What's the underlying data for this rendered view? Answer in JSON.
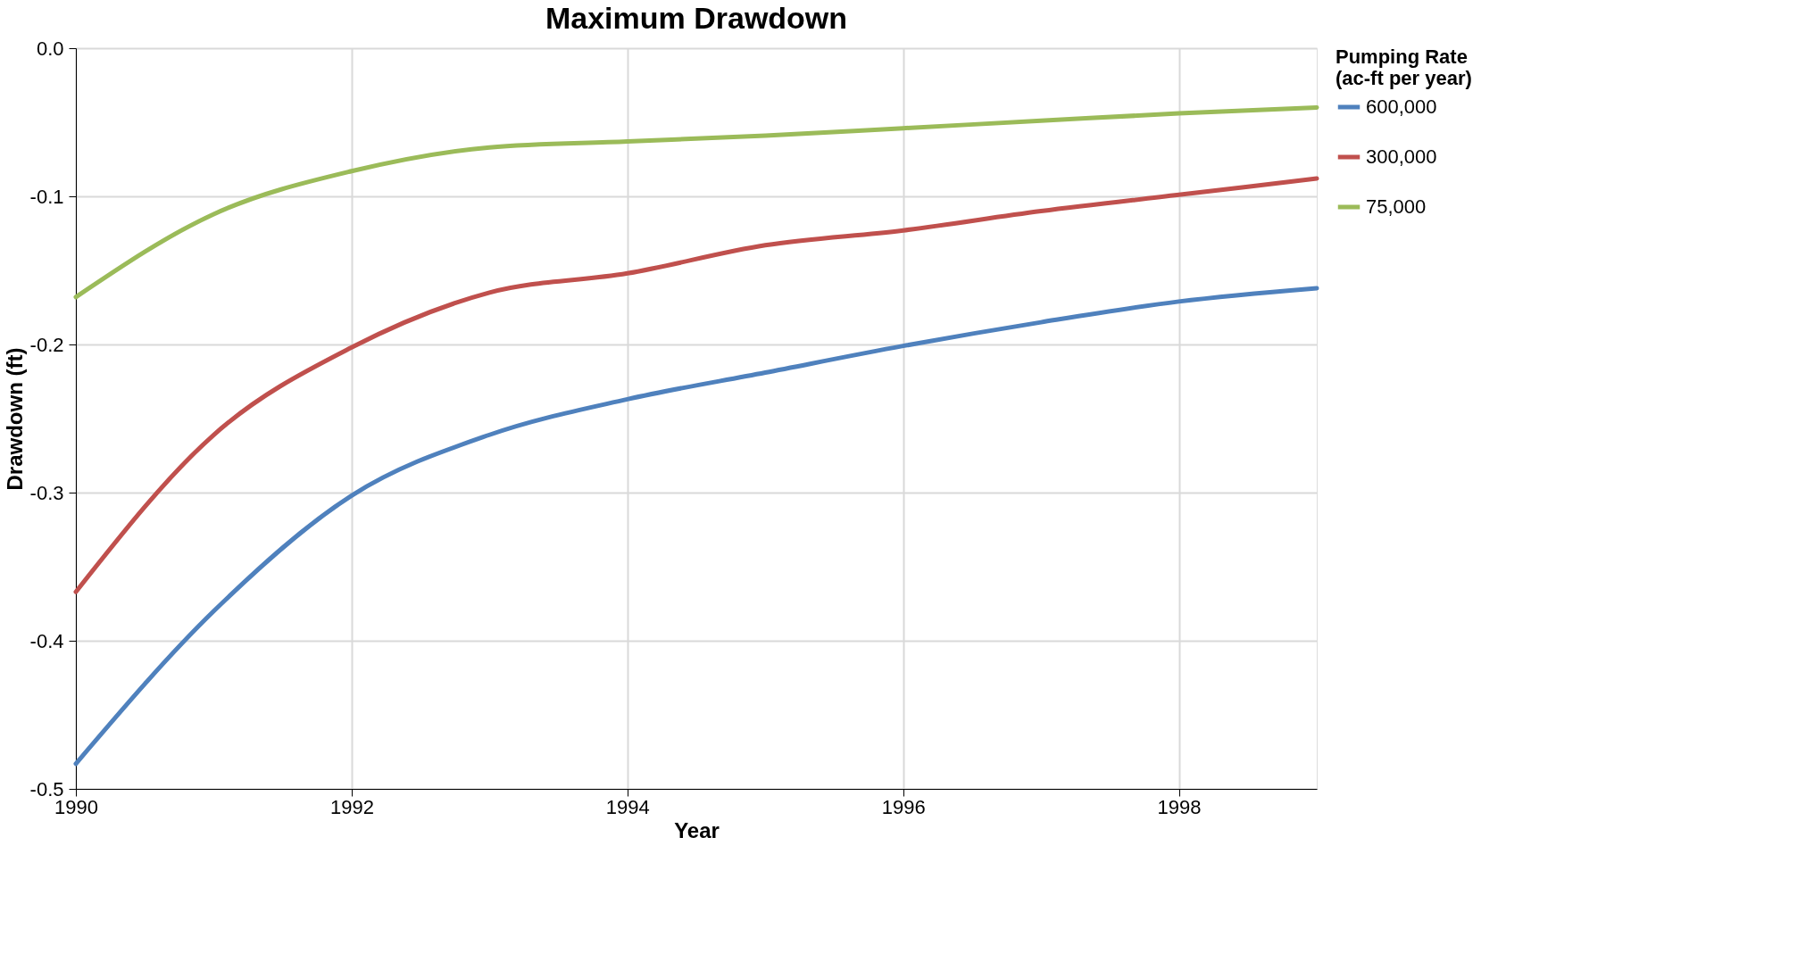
{
  "chart_data": {
    "type": "line",
    "title": "Maximum Drawdown",
    "xlabel": "Year",
    "ylabel": "Drawdown (ft)",
    "legend_title": "Pumping Rate\n(ac-ft per year)",
    "x": [
      1990,
      1991,
      1992,
      1993,
      1994,
      1995,
      1996,
      1997,
      1998,
      1999
    ],
    "series": [
      {
        "name": "600,000",
        "color": "#4f81bd",
        "values": [
          -0.483,
          -0.38,
          -0.302,
          -0.261,
          -0.237,
          -0.219,
          -0.201,
          -0.185,
          -0.171,
          -0.162
        ]
      },
      {
        "name": "300,000",
        "color": "#c0504d",
        "values": [
          -0.367,
          -0.261,
          -0.202,
          -0.165,
          -0.152,
          -0.133,
          -0.123,
          -0.11,
          -0.099,
          -0.088
        ]
      },
      {
        "name": "75,000",
        "color": "#9bbb59",
        "values": [
          -0.168,
          -0.112,
          -0.083,
          -0.067,
          -0.063,
          -0.059,
          -0.054,
          -0.049,
          -0.044,
          -0.04
        ]
      }
    ],
    "xlim": [
      1990,
      1999
    ],
    "xticks": [
      1990,
      1992,
      1994,
      1996,
      1998
    ],
    "ylim": [
      -0.5,
      0
    ],
    "yticks": [
      {
        "value": -0.5,
        "label": "-0.5"
      },
      {
        "value": -0.4,
        "label": "-0.4"
      },
      {
        "value": -0.3,
        "label": "-0.3"
      },
      {
        "value": -0.2,
        "label": "-0.2"
      },
      {
        "value": -0.1,
        "label": "-0.1"
      },
      {
        "value": 0,
        "label": "0.0"
      }
    ],
    "grid": true,
    "legend": "right",
    "marker": "none",
    "line_style": "solid"
  }
}
